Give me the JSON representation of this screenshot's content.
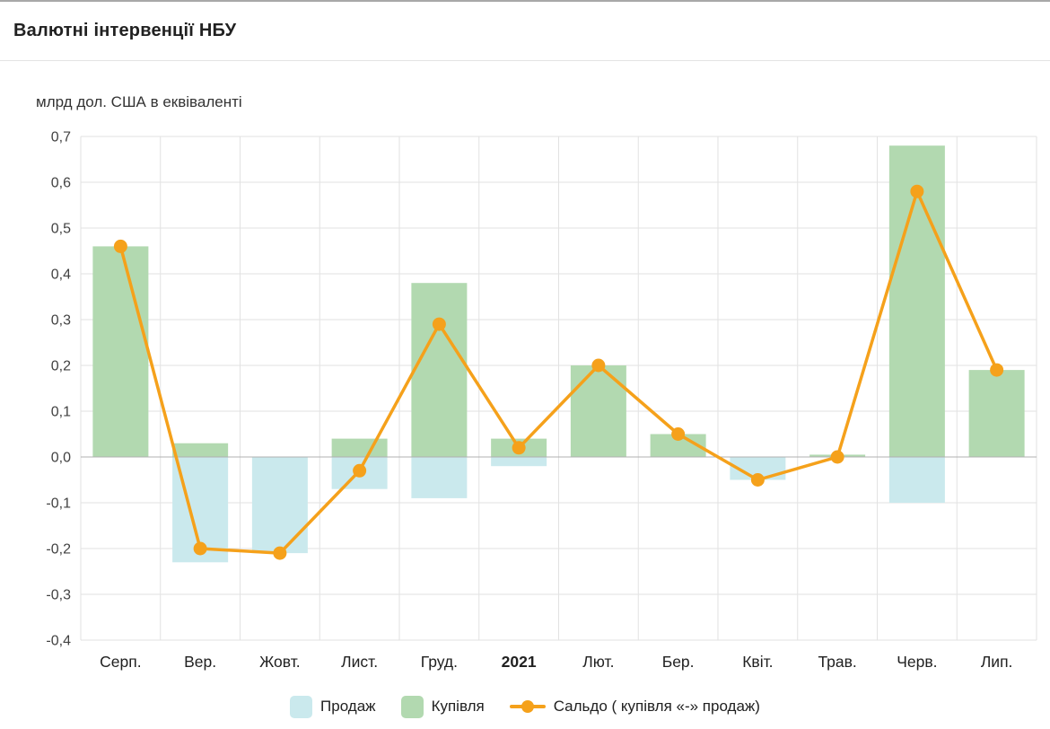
{
  "header": {
    "title": "Валютні інтервенції НБУ"
  },
  "chart_data": {
    "type": "bar+line",
    "title": "Валютні інтервенції НБУ",
    "unit_label": "млрд дол. США в еквіваленті",
    "categories": [
      "Серп.",
      "Вер.",
      "Жовт.",
      "Лист.",
      "Груд.",
      "2021",
      "Лют.",
      "Бер.",
      "Квіт.",
      "Трав.",
      "Черв.",
      "Лип."
    ],
    "bold_category": "2021",
    "series": [
      {
        "name": "Продаж",
        "type": "bar",
        "color": "#cae9ed",
        "values": [
          0,
          -0.23,
          -0.21,
          -0.07,
          -0.09,
          -0.02,
          0,
          0,
          -0.05,
          0,
          -0.1,
          0
        ]
      },
      {
        "name": "Купівля",
        "type": "bar",
        "color": "#b2d9b0",
        "values": [
          0.46,
          0.03,
          0,
          0.04,
          0.38,
          0.04,
          0.2,
          0.05,
          0,
          0.005,
          0.68,
          0.19
        ]
      },
      {
        "name": "Сальдо ( купівля «-» продаж)",
        "type": "line",
        "color": "#f5a11b",
        "values": [
          0.46,
          -0.2,
          -0.21,
          -0.03,
          0.29,
          0.02,
          0.2,
          0.05,
          -0.05,
          0.0,
          0.58,
          0.19
        ]
      }
    ],
    "y_ticks": {
      "values": [
        0.7,
        0.6,
        0.5,
        0.4,
        0.3,
        0.2,
        0.1,
        0.0,
        -0.1,
        -0.2,
        -0.3,
        -0.4
      ],
      "labels": [
        "0,7",
        "0,6",
        "0,5",
        "0,4",
        "0,3",
        "0,2",
        "0,1",
        "0,0",
        "-0,1",
        "-0,2",
        "-0,3",
        "-0,4"
      ]
    },
    "ylim": [
      -0.4,
      0.7
    ],
    "grid": true,
    "legend_position": "bottom",
    "colors": {
      "grid": "#e2e2e2",
      "zero_line": "#b0b0b0",
      "tick_text": "#424242",
      "axis_text": "#212121"
    }
  },
  "legend": {
    "items": [
      {
        "label": "Продаж"
      },
      {
        "label": "Купівля"
      },
      {
        "label": "Сальдо ( купівля «-» продаж)"
      }
    ]
  }
}
